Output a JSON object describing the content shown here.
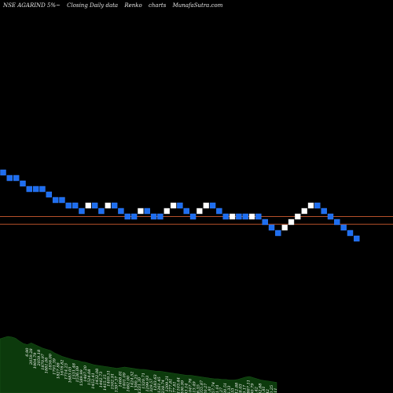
{
  "header": {
    "symbol": "NSE AGARIND 5%~",
    "chart_kind": "Closing Daily data",
    "chart_style": "Renko",
    "chart_word": "charts",
    "site": "MunafaSutra.com"
  },
  "colors": {
    "background": "#000000",
    "down_brick": "#1e6ef0",
    "up_brick": "#ffffff",
    "ref_line": "#b5502a",
    "volume_fill": "#0c3a0c",
    "label_text": "#ffffff"
  },
  "chart_data": {
    "type": "renko",
    "brick_percent": 5,
    "bricks": [
      {
        "dir": "down",
        "level": 0
      },
      {
        "dir": "down",
        "level": -1
      },
      {
        "dir": "down",
        "level": -1
      },
      {
        "dir": "down",
        "level": -2
      },
      {
        "dir": "down",
        "level": -3
      },
      {
        "dir": "down",
        "level": -3
      },
      {
        "dir": "down",
        "level": -3
      },
      {
        "dir": "down",
        "level": -4
      },
      {
        "dir": "down",
        "level": -5
      },
      {
        "dir": "down",
        "level": -5
      },
      {
        "dir": "down",
        "level": -6
      },
      {
        "dir": "down",
        "level": -6
      },
      {
        "dir": "down",
        "level": -7
      },
      {
        "dir": "up",
        "level": -6
      },
      {
        "dir": "down",
        "level": -6
      },
      {
        "dir": "down",
        "level": -7
      },
      {
        "dir": "up",
        "level": -6
      },
      {
        "dir": "down",
        "level": -6
      },
      {
        "dir": "down",
        "level": -7
      },
      {
        "dir": "down",
        "level": -8
      },
      {
        "dir": "down",
        "level": -8
      },
      {
        "dir": "up",
        "level": -7
      },
      {
        "dir": "down",
        "level": -7
      },
      {
        "dir": "down",
        "level": -8
      },
      {
        "dir": "down",
        "level": -8
      },
      {
        "dir": "up",
        "level": -7
      },
      {
        "dir": "up",
        "level": -6
      },
      {
        "dir": "down",
        "level": -6
      },
      {
        "dir": "down",
        "level": -7
      },
      {
        "dir": "down",
        "level": -8
      },
      {
        "dir": "up",
        "level": -7
      },
      {
        "dir": "up",
        "level": -6
      },
      {
        "dir": "down",
        "level": -6
      },
      {
        "dir": "down",
        "level": -7
      },
      {
        "dir": "down",
        "level": -8
      },
      {
        "dir": "up",
        "level": -8
      },
      {
        "dir": "down",
        "level": -8
      },
      {
        "dir": "down",
        "level": -8
      },
      {
        "dir": "up",
        "level": -8
      },
      {
        "dir": "down",
        "level": -8
      },
      {
        "dir": "down",
        "level": -9
      },
      {
        "dir": "down",
        "level": -10
      },
      {
        "dir": "down",
        "level": -11
      },
      {
        "dir": "up",
        "level": -10
      },
      {
        "dir": "up",
        "level": -9
      },
      {
        "dir": "up",
        "level": -8
      },
      {
        "dir": "up",
        "level": -7
      },
      {
        "dir": "up",
        "level": -6
      },
      {
        "dir": "down",
        "level": -6
      },
      {
        "dir": "down",
        "level": -7
      },
      {
        "dir": "down",
        "level": -8
      },
      {
        "dir": "down",
        "level": -9
      },
      {
        "dir": "down",
        "level": -10
      },
      {
        "dir": "down",
        "level": -11
      },
      {
        "dir": "down",
        "level": -12
      }
    ],
    "reference_levels": [
      -8,
      -9.4
    ],
    "volume_profile": [
      92,
      94,
      96,
      95,
      93,
      88,
      84,
      82,
      85,
      82,
      79,
      76,
      74,
      72,
      68,
      65,
      62,
      60,
      58,
      56,
      55,
      53,
      52,
      50,
      48,
      47,
      46,
      45,
      44,
      43,
      42,
      43,
      44,
      43,
      42,
      41,
      40,
      40,
      39,
      38,
      37,
      37,
      36,
      35,
      34,
      33,
      32,
      31,
      30,
      30,
      29,
      28,
      27,
      26,
      25,
      24,
      24,
      23,
      23,
      22,
      22,
      23,
      25,
      27,
      28,
      26,
      24,
      22,
      21,
      20,
      19,
      18
    ],
    "bottom_labels": [
      "6.90",
      "2059.28",
      "1904.79",
      "2059.18",
      "1870.97",
      "1881.06",
      "1856.00",
      "1791.39",
      "1827.88",
      "1678.82",
      "1714.23",
      "1683.05",
      "1531.48",
      "1536.09",
      "1589.99",
      "1487.20",
      "1524.08",
      "1452.41",
      "1432.08",
      "1442.73",
      "1415.15",
      "1409.51",
      "1502.91",
      "1397.37",
      "1468.81",
      "1401.09",
      "1462.00",
      "1424.52",
      "1300.25",
      "1331.30",
      "1320.71",
      "1299.93",
      "1329.57",
      "1283.63",
      "1261.45",
      "1238.74",
      "1209.21",
      "1277.81",
      "1277.81",
      "1103.44",
      "1100.99",
      "1103.14",
      "1047.76",
      "1113.49",
      "1056.55",
      "1055.87",
      "1020.27",
      "1015.81",
      "957.74",
      "1131.01",
      "1038.27",
      "1120.51",
      "1056.33",
      "885.53",
      "912.88",
      "868.03",
      "849.17",
      "887.11",
      "800.79",
      "887.42",
      "802.68",
      "796.81",
      "853.42",
      "700.25",
      "708.11"
    ]
  }
}
